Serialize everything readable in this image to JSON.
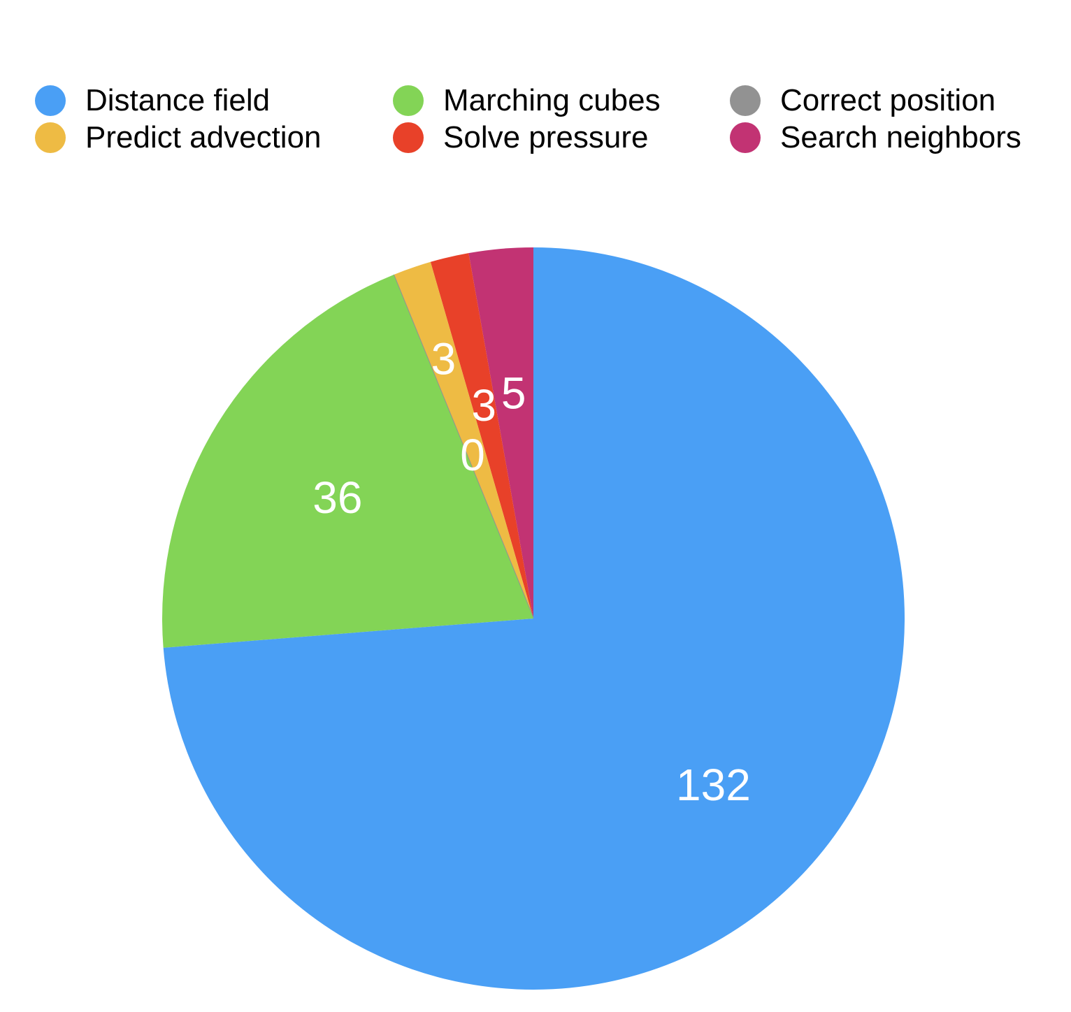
{
  "chart_data": {
    "type": "pie",
    "title": "",
    "legend_position": "top",
    "categories": [
      "Distance field",
      "Marching cubes",
      "Correct position",
      "Predict advection",
      "Solve pressure",
      "Search neighbors"
    ],
    "values": [
      132,
      36,
      0,
      3,
      3,
      5
    ],
    "data_labels": [
      "132",
      "36",
      "0",
      "3",
      "3",
      "5"
    ],
    "colors": [
      "#4a9ff5",
      "#83d456",
      "#929292",
      "#eebb44",
      "#e84129",
      "#c23373"
    ]
  }
}
